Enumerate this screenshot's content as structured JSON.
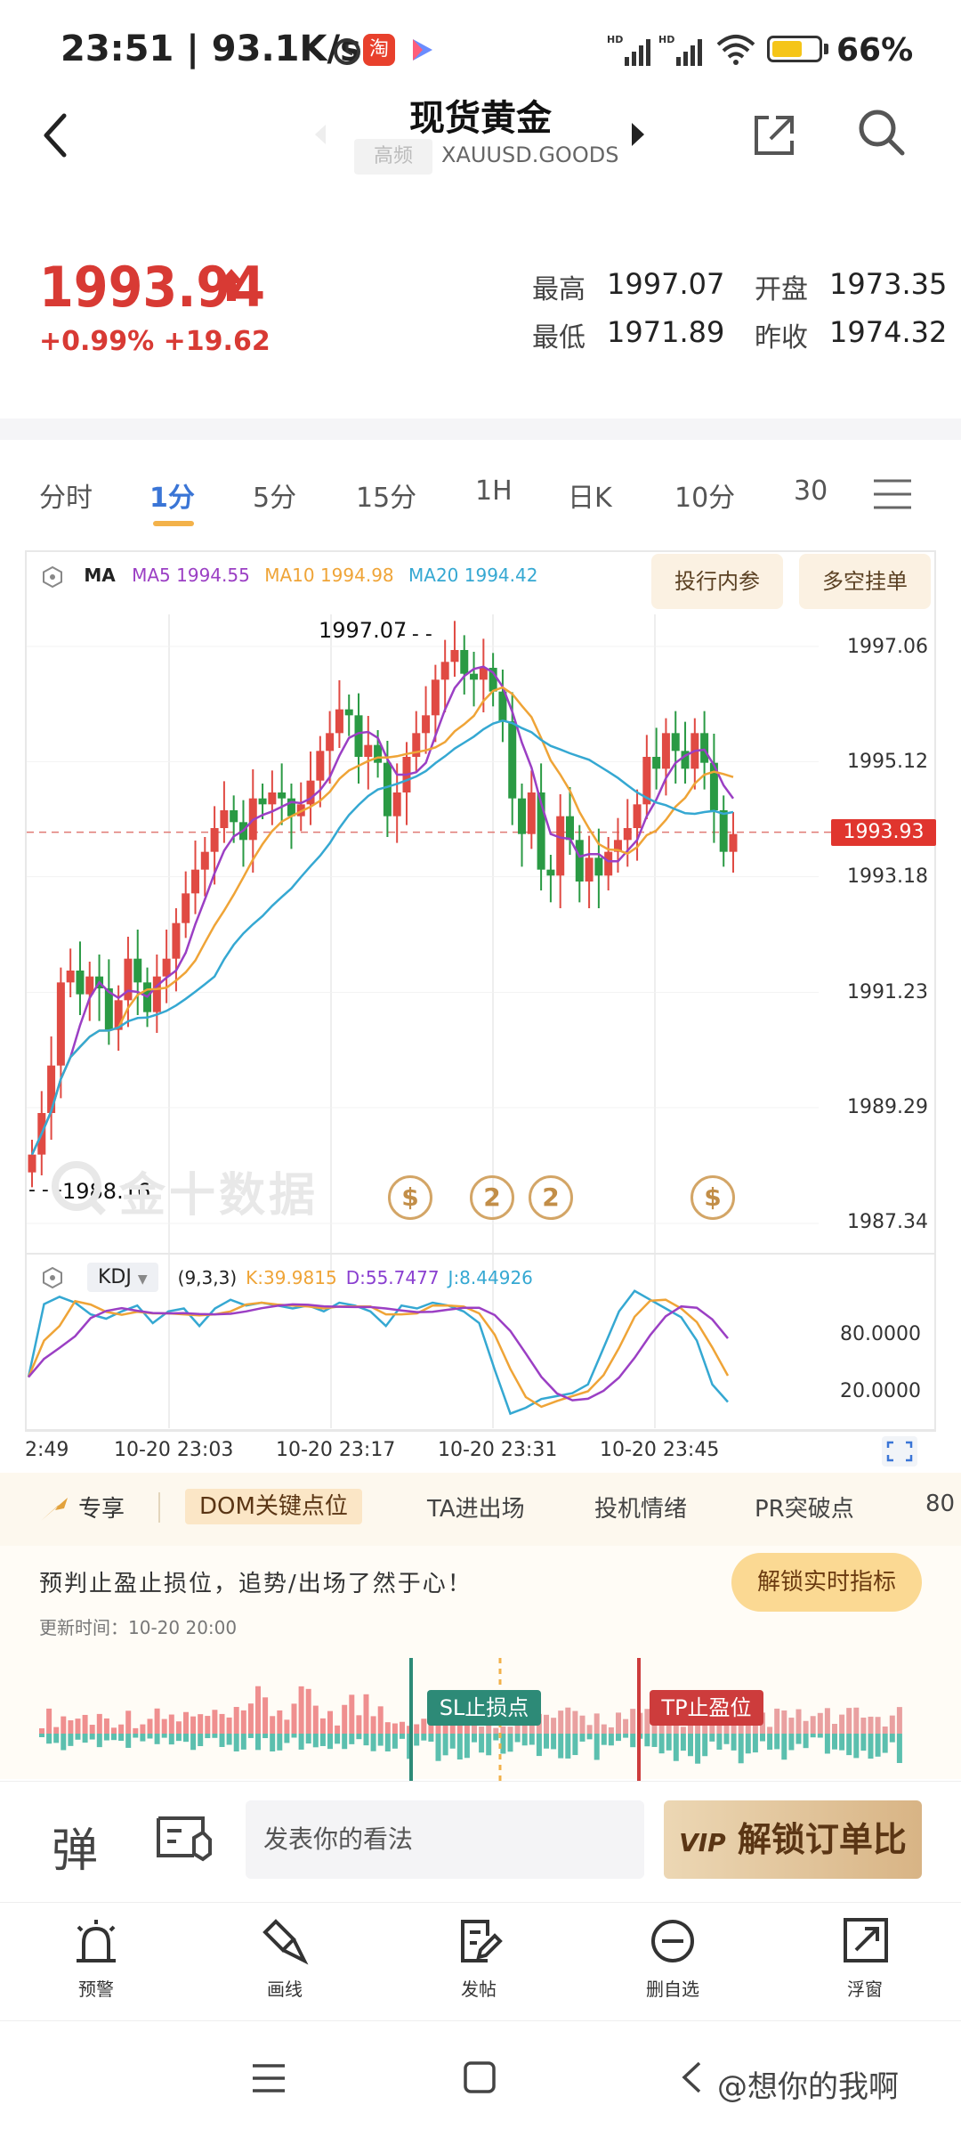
{
  "status": {
    "time": "23:51 | 93.1K/s",
    "battery": "66%",
    "battery_level": 0.66
  },
  "header": {
    "title": "现货黄金",
    "badge": "高频",
    "subtitle": "XAUUSD.GOODS"
  },
  "quote": {
    "price": "1993.94",
    "change": "+0.99% +19.62",
    "high_label": "最高",
    "high": "1997.07",
    "open_label": "开盘",
    "open": "1973.35",
    "low_label": "最低",
    "low": "1971.89",
    "prev_label": "昨收",
    "prev": "1974.32"
  },
  "tabs": [
    "分时",
    "1分",
    "5分",
    "15分",
    "1H",
    "日K",
    "10分",
    "30"
  ],
  "active_tab": "1分",
  "chart": {
    "ma_label": "MA",
    "ma5": "MA5 1994.55",
    "ma10": "MA10 1994.98",
    "ma20": "MA20 1994.42",
    "pill1": "投行内参",
    "pill2": "多空挂单",
    "high_marker": "1997.07",
    "low_marker": "1988.16",
    "current_price_tag": "1993.93",
    "watermark": "金十数据",
    "kdj_label": "KDJ",
    "kdj_params": "(9,3,3)",
    "kdj_k": "K:39.9815",
    "kdj_d": "D:55.7477",
    "kdj_j": "J:8.44926",
    "kdj_level_high": "80.0000",
    "kdj_level_low": "20.0000",
    "time_labels": [
      "2:49",
      "10-20 23:03",
      "10-20 23:17",
      "10-20 23:31",
      "10-20 23:45"
    ],
    "event_icons": [
      "$",
      "2",
      "2",
      "$"
    ]
  },
  "chart_data": {
    "type": "candlestick",
    "y_ticks": [
      1997.06,
      1995.12,
      1993.18,
      1991.23,
      1989.29,
      1987.34
    ],
    "ylim": [
      1987.34,
      1997.06
    ],
    "kdj_ylim": [
      0,
      100
    ],
    "kdj_levels": [
      80,
      20
    ],
    "colors": {
      "up": "#e04a43",
      "down": "#2a9a44",
      "ma5": "#9b3fc4",
      "ma10": "#efa437",
      "ma20": "#35a8d2"
    }
  },
  "indicators": {
    "share_label": "专享",
    "tabs": [
      "DOM关键点位",
      "TA进出场",
      "投机情绪",
      "PR突破点",
      "80"
    ],
    "active": "DOM关键点位"
  },
  "promo": {
    "text": "预判止盈止损位，追势/出场了然于心！",
    "update_time": "更新时间：10-20 20:00",
    "unlock_label": "解锁实时指标",
    "sl_label": "SL止损点",
    "tp_label": "TP止盈位"
  },
  "comment": {
    "danmaku": "弹",
    "placeholder": "发表你的看法",
    "vip_label": "解锁订单比",
    "vip_prefix": "VIP"
  },
  "toolbar": [
    {
      "label": "预警",
      "icon": "alarm-icon"
    },
    {
      "label": "画线",
      "icon": "draw-line-icon"
    },
    {
      "label": "发帖",
      "icon": "post-icon"
    },
    {
      "label": "删自选",
      "icon": "remove-favorite-icon"
    },
    {
      "label": "浮窗",
      "icon": "float-window-icon"
    }
  ],
  "watermark": "@想你的我啊"
}
